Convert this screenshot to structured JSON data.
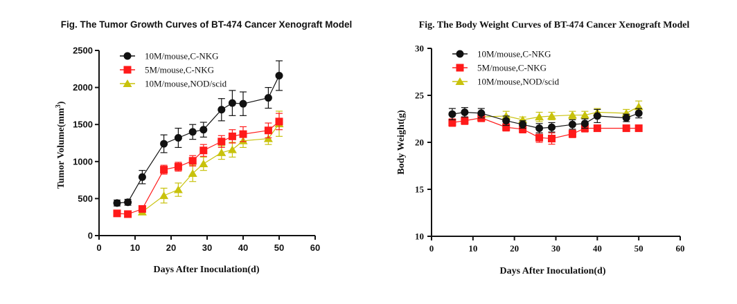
{
  "colors": {
    "black": "#111111",
    "red": "#ff1a1a",
    "olive": "#c8c20c"
  },
  "chart_data": [
    {
      "type": "line",
      "title": "Fig. The Tumor Growth Curves of BT-474 Cancer Xenograft Model",
      "xlabel": "Days After Inoculation(d)",
      "ylabel_main": "Tumor Volume(mm",
      "ylabel_sup": "3",
      "ylabel_end": ")",
      "xlim": [
        0,
        60
      ],
      "ylim": [
        0,
        2500
      ],
      "xticks": [
        "0",
        "10",
        "20",
        "30",
        "40",
        "50",
        "60"
      ],
      "yticks": [
        "0",
        "500",
        "1000",
        "1500",
        "2000",
        "2500"
      ],
      "legend_position": "top-left",
      "series": [
        {
          "name": "10M/mouse,C-NKG",
          "color": "black",
          "marker": "circle",
          "x": [
            5,
            8,
            12,
            18,
            22,
            26,
            29,
            34,
            37,
            40,
            47,
            50
          ],
          "values": [
            440,
            450,
            790,
            1240,
            1320,
            1400,
            1430,
            1700,
            1790,
            1780,
            1860,
            2160
          ],
          "errors": [
            40,
            40,
            90,
            120,
            130,
            100,
            100,
            150,
            170,
            160,
            140,
            200
          ]
        },
        {
          "name": "5M/mouse,C-NKG",
          "color": "red",
          "marker": "square",
          "x": [
            5,
            8,
            12,
            18,
            22,
            26,
            29,
            34,
            37,
            40,
            47,
            50
          ],
          "values": [
            300,
            290,
            360,
            890,
            930,
            1010,
            1150,
            1270,
            1340,
            1370,
            1420,
            1540
          ],
          "errors": [
            40,
            30,
            40,
            60,
            60,
            70,
            80,
            80,
            90,
            100,
            100,
            110
          ]
        },
        {
          "name": "10M/mouse,NOD/scid",
          "color": "olive",
          "marker": "triangle",
          "x": [
            12,
            18,
            22,
            26,
            29,
            34,
            37,
            40,
            47,
            50
          ],
          "values": [
            320,
            540,
            620,
            840,
            970,
            1120,
            1160,
            1280,
            1310,
            1510
          ],
          "errors": [
            30,
            100,
            90,
            110,
            90,
            90,
            100,
            90,
            80,
            170
          ]
        }
      ]
    },
    {
      "type": "line",
      "title": "Fig. The Body Weight  Curves of BT-474 Cancer Xenograft Model",
      "xlabel": "Days After Inoculation(d)",
      "ylabel": "Body Weight(g)",
      "xlim": [
        0,
        60
      ],
      "ylim": [
        10,
        30
      ],
      "xticks": [
        "0",
        "10",
        "20",
        "30",
        "40",
        "50",
        "60"
      ],
      "yticks": [
        "10",
        "15",
        "20",
        "25",
        "30"
      ],
      "legend_position": "top-left",
      "series": [
        {
          "name": "10M/mouse,C-NKG",
          "color": "black",
          "marker": "circle",
          "x": [
            5,
            8,
            12,
            18,
            22,
            26,
            29,
            34,
            37,
            40,
            47,
            50
          ],
          "values": [
            23.0,
            23.2,
            23.1,
            22.3,
            21.9,
            21.5,
            21.6,
            21.9,
            22.0,
            22.8,
            22.6,
            23.1
          ],
          "errors": [
            0.6,
            0.5,
            0.5,
            0.5,
            0.4,
            0.5,
            0.5,
            0.5,
            0.5,
            0.7,
            0.4,
            0.5
          ]
        },
        {
          "name": "5M/mouse,C-NKG",
          "color": "red",
          "marker": "square",
          "x": [
            5,
            8,
            12,
            18,
            22,
            26,
            29,
            34,
            37,
            40,
            47,
            50
          ],
          "values": [
            22.1,
            22.3,
            22.6,
            21.6,
            21.4,
            20.5,
            20.4,
            20.9,
            21.5,
            21.5,
            21.5,
            21.5
          ],
          "errors": [
            0.4,
            0.4,
            0.4,
            0.4,
            0.4,
            0.5,
            0.6,
            0.4,
            0.4,
            0.3,
            0.3,
            0.3
          ]
        },
        {
          "name": "10M/mouse,NOD/scid",
          "color": "olive",
          "marker": "triangle",
          "x": [
            12,
            18,
            22,
            26,
            29,
            34,
            37,
            40,
            47,
            50
          ],
          "values": [
            22.7,
            22.8,
            22.4,
            22.7,
            22.8,
            22.9,
            22.9,
            23.2,
            23.1,
            23.8
          ],
          "errors": [
            0.3,
            0.5,
            0.3,
            0.5,
            0.4,
            0.4,
            0.4,
            0.4,
            0.4,
            0.6
          ]
        }
      ]
    }
  ]
}
